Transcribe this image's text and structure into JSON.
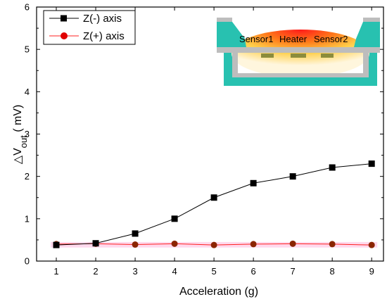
{
  "chart_data": {
    "type": "line",
    "xlabel": "Acceleration (g)",
    "ylabel": {
      "prefix": "△V",
      "subscript": "out",
      "unit": " ( mV)"
    },
    "xlim": [
      0.5,
      9.3
    ],
    "ylim": [
      0,
      6
    ],
    "x_ticks": [
      1,
      2,
      3,
      4,
      5,
      6,
      7,
      8,
      9
    ],
    "y_ticks": [
      0,
      1,
      2,
      3,
      4,
      5,
      6
    ],
    "grid": false,
    "legend_position": "top-left",
    "series": [
      {
        "name": "Z(-) axis",
        "marker": "square",
        "color": "#000000",
        "line_color": "#000000",
        "x": [
          1,
          2,
          3,
          4,
          5,
          6,
          7,
          8,
          9
        ],
        "y": [
          0.38,
          0.42,
          0.65,
          1.0,
          1.5,
          1.84,
          2.0,
          2.21,
          2.3
        ]
      },
      {
        "name": "Z(+) axis",
        "marker": "circle",
        "color": "#8b2500",
        "line_color": "#ff2020",
        "error_band_color": "#ffd0e8",
        "x": [
          1,
          2,
          3,
          4,
          5,
          6,
          7,
          8,
          9
        ],
        "y": [
          0.4,
          0.41,
          0.39,
          0.41,
          0.38,
          0.4,
          0.41,
          0.4,
          0.38
        ]
      }
    ],
    "inset": {
      "labels": [
        "Sensor1",
        "Heater",
        "Sensor2"
      ]
    }
  }
}
